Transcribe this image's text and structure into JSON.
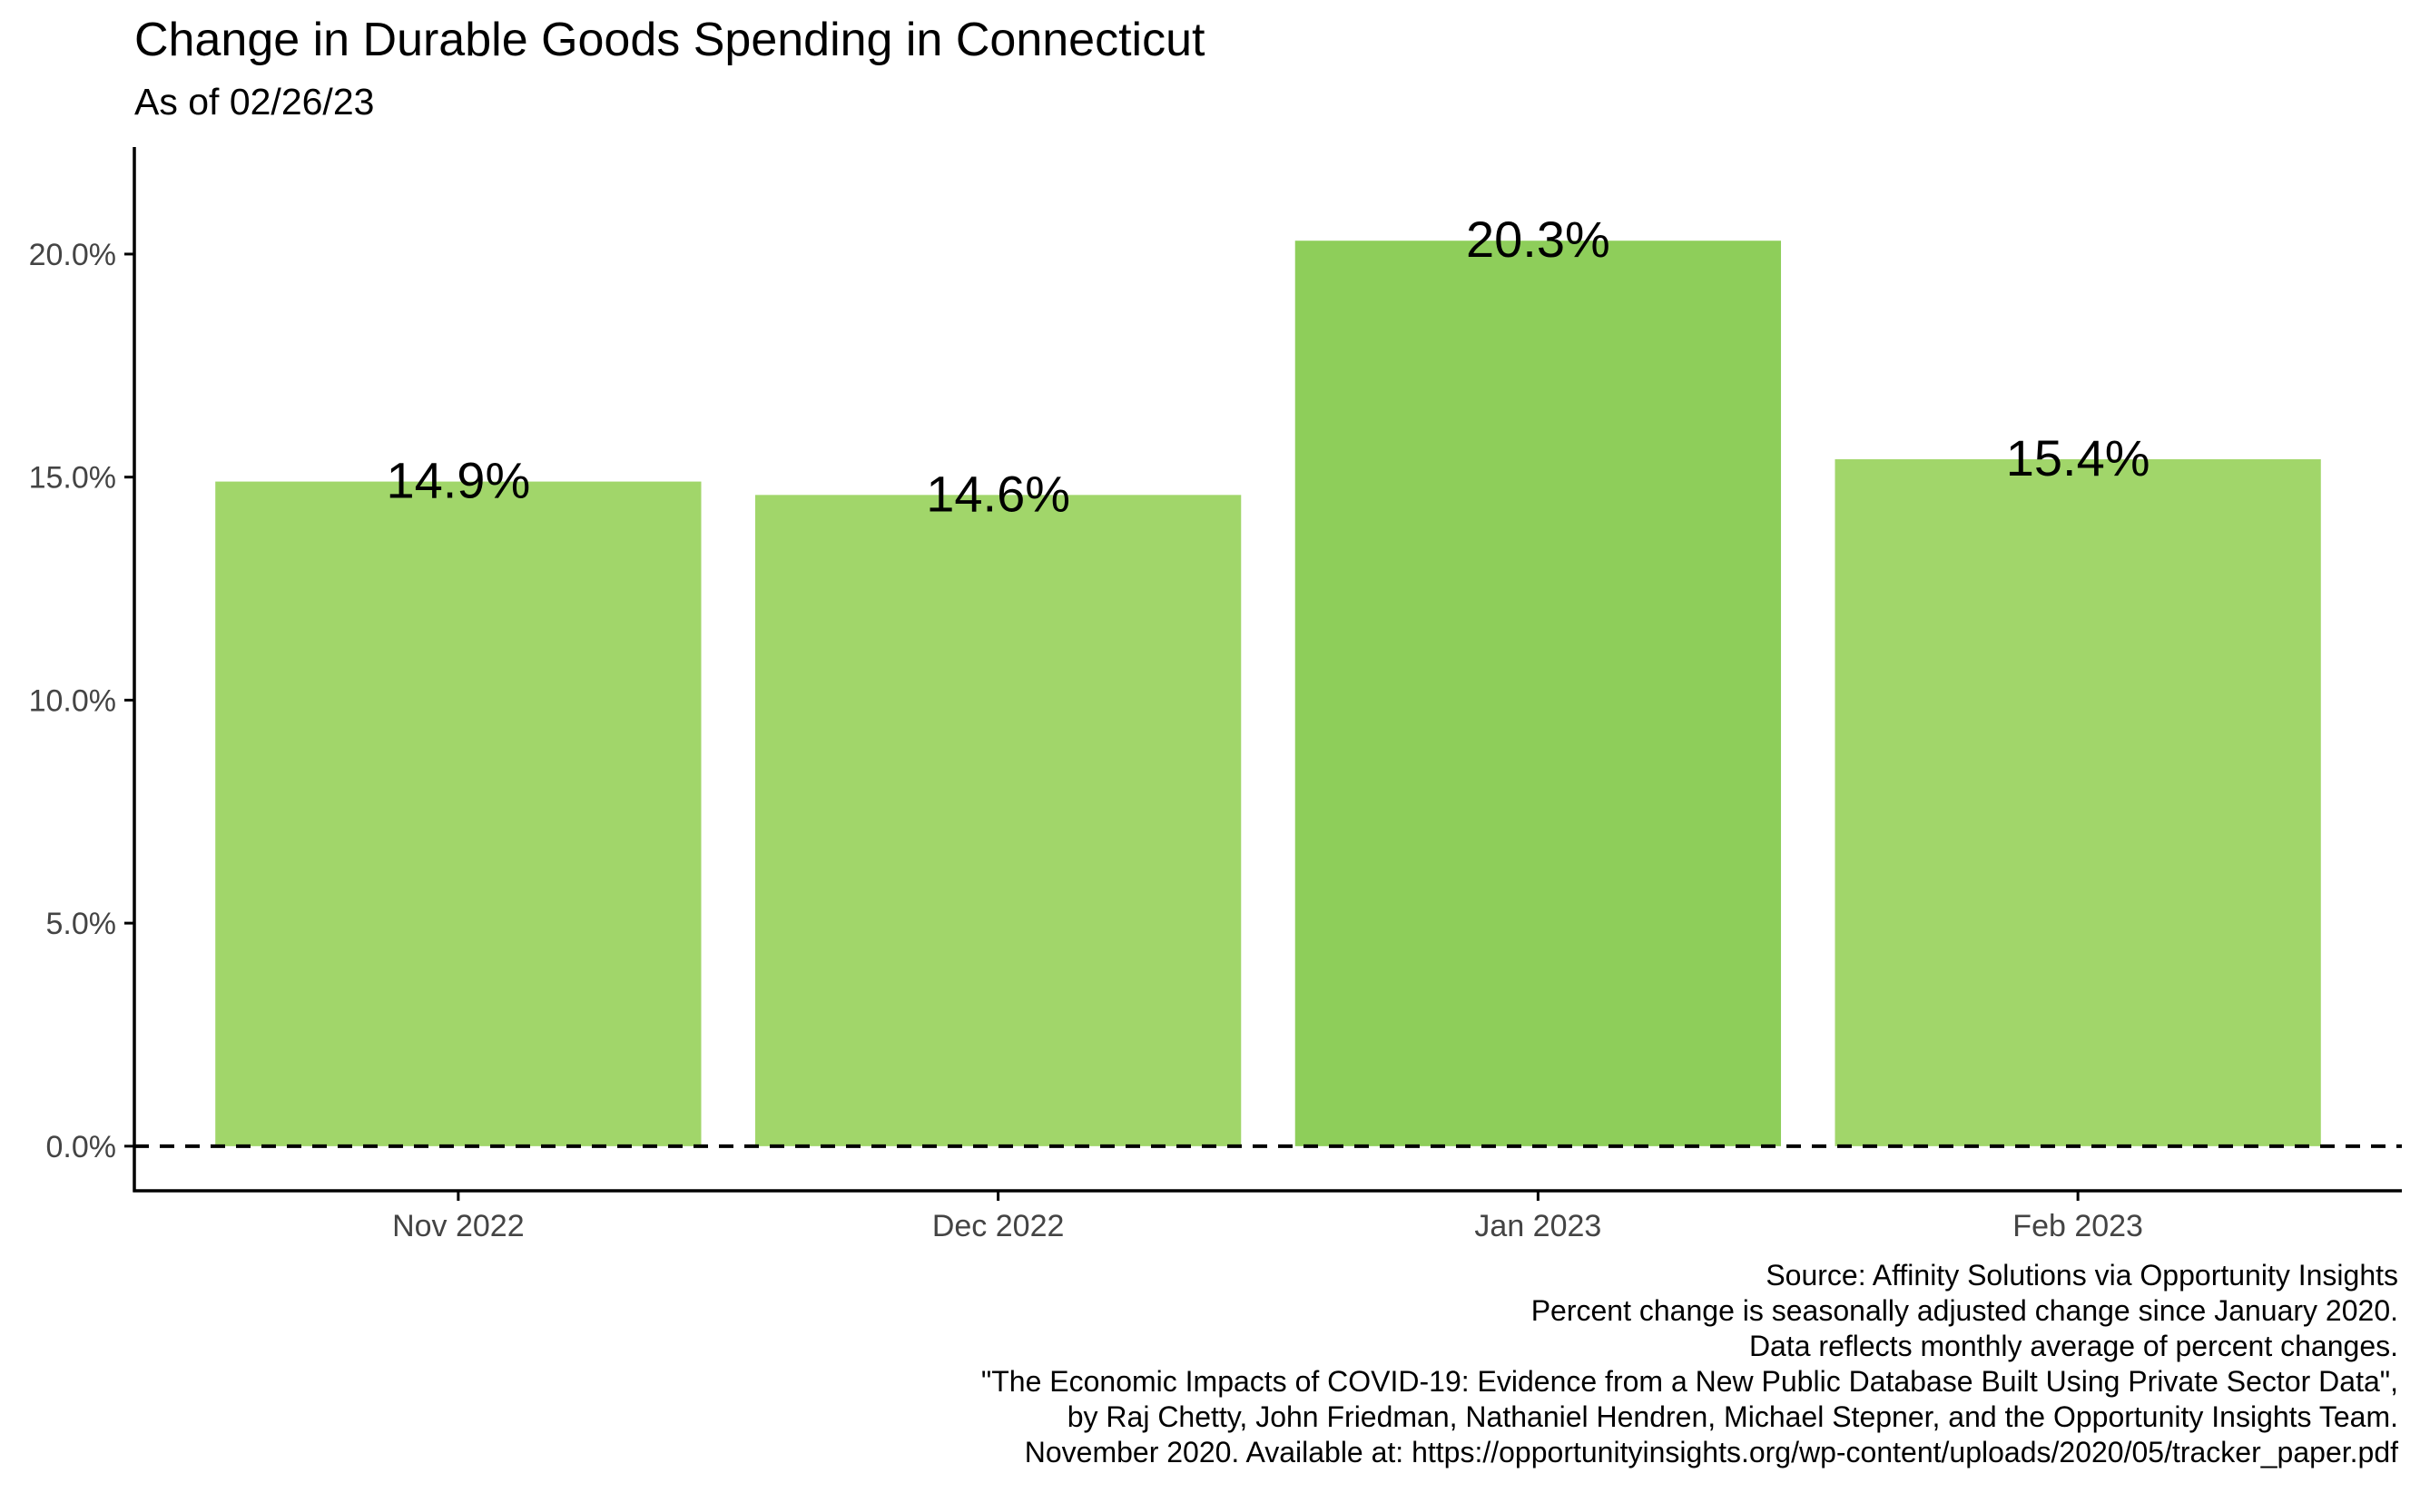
{
  "title": "Change in Durable Goods Spending in Connecticut",
  "subtitle": "As of 02/26/23",
  "caption": [
    "Source: Affinity Solutions via Opportunity Insights",
    "Percent change is seasonally adjusted change since January 2020.",
    "Data reflects monthly average of percent changes.",
    "\"The Economic Impacts of COVID-19: Evidence from a New Public Database Built Using Private Sector Data\",",
    "by Raj Chetty, John Friedman, Nathaniel Hendren, Michael Stepner, and the Opportunity Insights Team.",
    "November 2020. Available at: https://opportunityinsights.org/wp-content/uploads/2020/05/tracker_paper.pdf"
  ],
  "chart_data": {
    "type": "bar",
    "categories": [
      "Nov 2022",
      "Dec 2022",
      "Jan 2023",
      "Feb 2023"
    ],
    "values": [
      14.9,
      14.6,
      20.3,
      15.4
    ],
    "data_labels": [
      "14.9%",
      "14.6%",
      "20.3%",
      "15.4%"
    ],
    "yticks": [
      0,
      5,
      10,
      15,
      20
    ],
    "ytick_labels": [
      "0.0%",
      "5.0%",
      "10.0%",
      "15.0%",
      "20.0%"
    ],
    "ylim": [
      -1.0,
      22.4
    ],
    "xlabel": "",
    "ylabel": "",
    "reference_line": 0,
    "reference_line_style": "dashed",
    "grid": false,
    "colors": {
      "bar": "#a1d66a",
      "bar_highlight": "#8ece5a",
      "axis": "#000000",
      "tick_label": "#444444"
    }
  }
}
